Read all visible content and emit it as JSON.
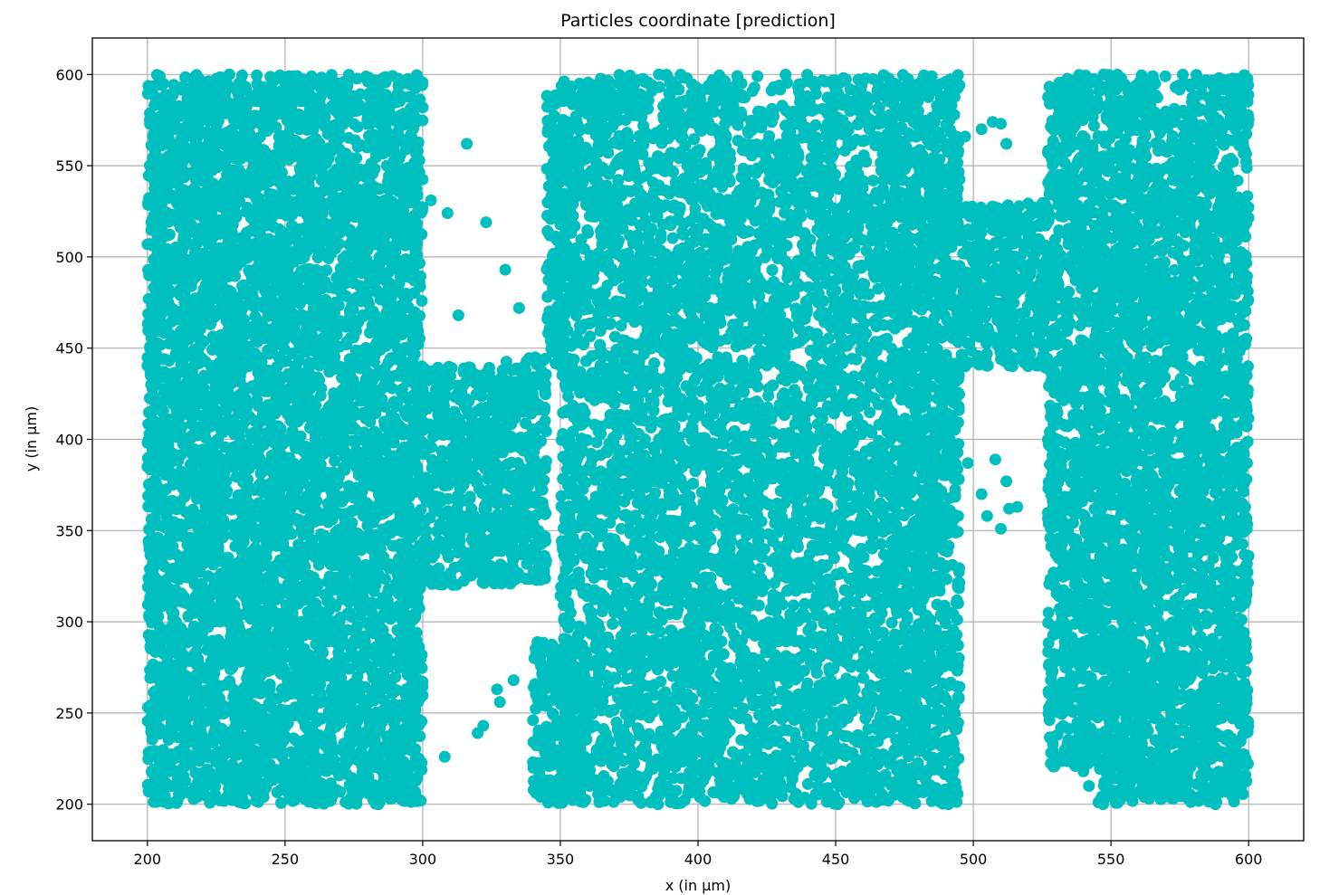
{
  "chart_data": {
    "type": "scatter",
    "title": "Particles coordinate [prediction]",
    "xlabel": "x (in µm)",
    "ylabel": "y (in µm)",
    "xlim": [
      180,
      620
    ],
    "ylim": [
      180,
      620
    ],
    "xticks": [
      200,
      250,
      300,
      350,
      400,
      450,
      500,
      550,
      600
    ],
    "yticks": [
      200,
      250,
      300,
      350,
      400,
      450,
      500,
      550,
      600
    ],
    "grid": true,
    "marker_color": "#00bfbf",
    "dense_regions": [
      {
        "x": [
          200,
          300
        ],
        "y": [
          200,
          600
        ]
      },
      {
        "x": [
          300,
          345
        ],
        "y": [
          320,
          440
        ]
      },
      {
        "x": [
          350,
          470
        ],
        "y": [
          200,
          600
        ]
      },
      {
        "x": [
          335,
          360
        ],
        "y": [
          200,
          290
        ]
      },
      {
        "x": [
          330,
          352
        ],
        "y": [
          440,
          590
        ]
      },
      {
        "x": [
          470,
          495
        ],
        "y": [
          200,
          600
        ]
      },
      {
        "x": [
          495,
          525
        ],
        "y": [
          440,
          530
        ]
      },
      {
        "x": [
          525,
          600
        ],
        "y": [
          200,
          600
        ]
      }
    ],
    "white_gaps": [
      {
        "x": [
          302,
          340
        ],
        "y": [
          200,
          320
        ]
      },
      {
        "x": [
          302,
          345
        ],
        "y": [
          445,
          600
        ]
      },
      {
        "x": [
          497,
          527
        ],
        "y": [
          200,
          438
        ]
      },
      {
        "x": [
          497,
          527
        ],
        "y": [
          530,
          600
        ]
      },
      {
        "x": [
          527,
          545
        ],
        "y": [
          200,
          220
        ]
      }
    ],
    "outlier_points": [
      {
        "x": 300,
        "y": 582
      },
      {
        "x": 303,
        "y": 531
      },
      {
        "x": 309,
        "y": 524
      },
      {
        "x": 313,
        "y": 468
      },
      {
        "x": 316,
        "y": 562
      },
      {
        "x": 323,
        "y": 519
      },
      {
        "x": 330,
        "y": 493
      },
      {
        "x": 335,
        "y": 472
      },
      {
        "x": 308,
        "y": 226
      },
      {
        "x": 298,
        "y": 221
      },
      {
        "x": 294,
        "y": 235
      },
      {
        "x": 290,
        "y": 237
      },
      {
        "x": 283,
        "y": 221
      },
      {
        "x": 320,
        "y": 239
      },
      {
        "x": 322,
        "y": 243
      },
      {
        "x": 328,
        "y": 256
      },
      {
        "x": 327,
        "y": 263
      },
      {
        "x": 333,
        "y": 268
      },
      {
        "x": 483,
        "y": 411
      },
      {
        "x": 497,
        "y": 440
      },
      {
        "x": 498,
        "y": 387
      },
      {
        "x": 503,
        "y": 370
      },
      {
        "x": 505,
        "y": 358
      },
      {
        "x": 508,
        "y": 389
      },
      {
        "x": 510,
        "y": 351
      },
      {
        "x": 512,
        "y": 377
      },
      {
        "x": 513,
        "y": 362
      },
      {
        "x": 516,
        "y": 363
      },
      {
        "x": 492,
        "y": 381
      },
      {
        "x": 497,
        "y": 566
      },
      {
        "x": 503,
        "y": 570
      },
      {
        "x": 507,
        "y": 574
      },
      {
        "x": 510,
        "y": 573
      },
      {
        "x": 512,
        "y": 562
      },
      {
        "x": 480,
        "y": 580
      },
      {
        "x": 487,
        "y": 567
      },
      {
        "x": 492,
        "y": 568
      },
      {
        "x": 475,
        "y": 577
      },
      {
        "x": 475,
        "y": 590
      },
      {
        "x": 472,
        "y": 592
      },
      {
        "x": 540,
        "y": 218
      },
      {
        "x": 542,
        "y": 210
      },
      {
        "x": 208,
        "y": 562
      },
      {
        "x": 211,
        "y": 581
      }
    ]
  }
}
